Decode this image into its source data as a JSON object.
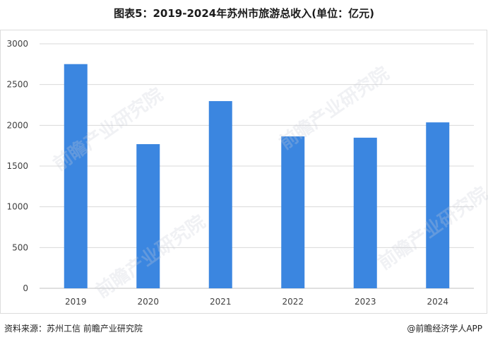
{
  "title": "图表5：2019-2024年苏州市旅游总收入(单位：亿元)",
  "source": "资料来源：苏州工信 前瞻产业研究院",
  "credit": "@前瞻经济学人APP",
  "watermark": "前瞻产业研究院",
  "colors": {
    "bar": "#3b86e0",
    "grid": "#d9d9d9",
    "axis": "#bfbfbf"
  },
  "chart_data": {
    "type": "bar",
    "categories": [
      "2019",
      "2020",
      "2021",
      "2022",
      "2023",
      "2024"
    ],
    "values": [
      2751,
      1769,
      2297,
      1864,
      1848,
      2036
    ],
    "ylim": [
      0,
      3000
    ],
    "yticks": [
      0,
      500,
      1000,
      1500,
      2000,
      2500,
      3000
    ],
    "grid": true,
    "legend": "none"
  }
}
